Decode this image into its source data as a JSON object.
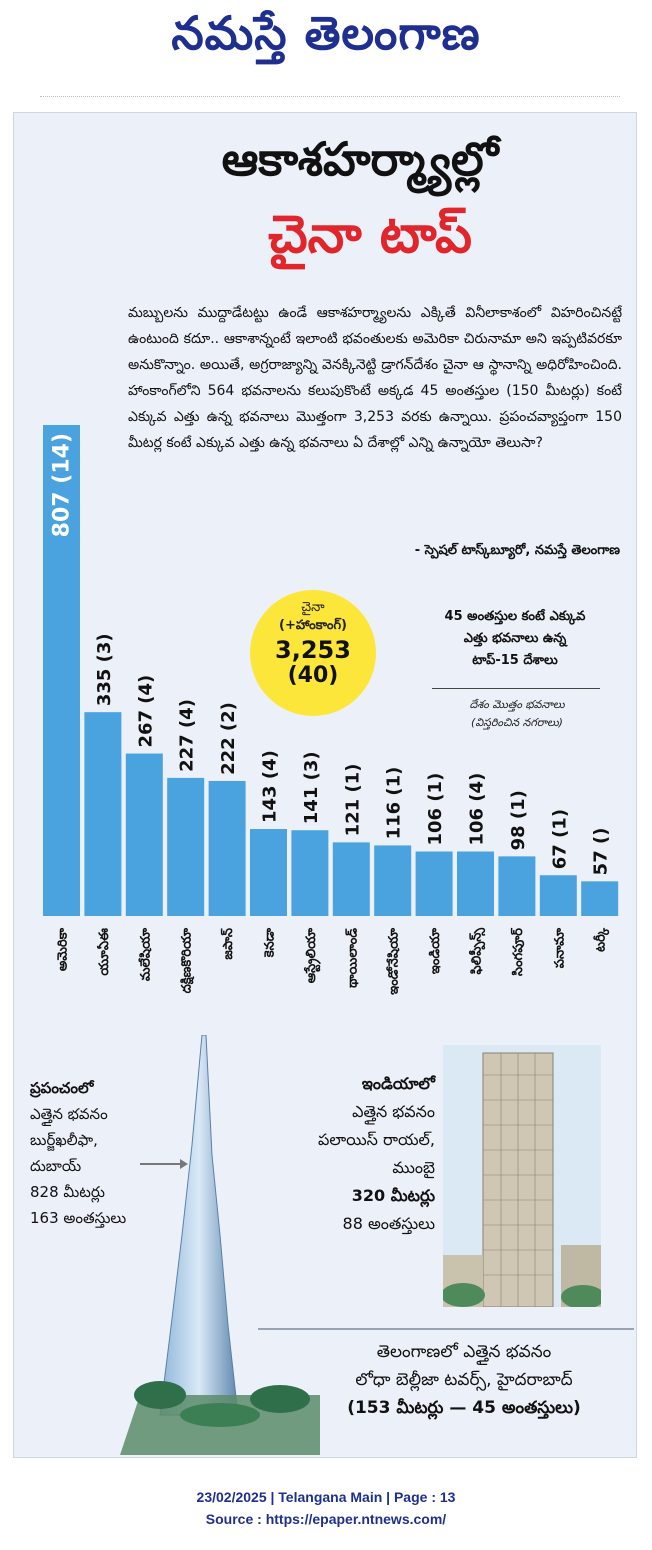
{
  "masthead": "నమస్తే తెలంగాణ",
  "headline_line1": "ఆకాశహర్మ్యాల్లో",
  "headline_line2": "చైనా టాప్",
  "intro_text": "మబ్బులను ముద్దాడేటట్టు ఉండే ఆకాశహర్మ్యాలను ఎక్కితే వినీలాకాశంలో విహరించినట్టే ఉంటుంది కదూ.. ఆకాశాన్నంటే ఇలాంటి భవంతులకు అమెరికా చిరునామా అని ఇప్పటివరకూ అనుకొన్నాం. అయితే, అగ్రరాజ్యాన్ని వెనక్కినెట్టి డ్రాగన్‌దేశం చైనా ఆ స్థానాన్ని అధిరోహించింది. హాంకాంగ్‌లోని 564 భవనాలను కలుపుకొంటే అక్కడ 45 అంతస్తుల (150 మీటర్లు) కంటే ఎక్కువ ఎత్తు ఉన్న భవనాలు మొత్తంగా 3,253 వరకు ఉన్నాయి. ప్రపంచవ్యాప్తంగా 150 మీటర్ల కంటే ఎక్కువ ఎత్తు ఉన్న భవనాలు ఏ దేశాల్లో ఎన్ని ఉన్నాయో తెలుసా?",
  "byline": "- స్పెషల్ టాస్క్‌బ్యూరో, నమస్తే తెలంగాణ",
  "china_circle": {
    "country": "చైనా",
    "sub": "(+హాంకాంగ్)",
    "total": "3,253",
    "cities": "(40)"
  },
  "legend": {
    "title_lines": [
      "45 అంతస్తుల కంటే ఎక్కువ",
      "ఎత్తు భవనాలు ఉన్న",
      "టాప్-15 దేశాలు"
    ],
    "note_lines": [
      "దేశం మొత్తం భవనాలు",
      "(విస్తరించిన నగరాలు)"
    ]
  },
  "chart_data": {
    "type": "bar",
    "categories": [
      "అమెరికా",
      "యూఏఈ",
      "మలేషియా",
      "దక్షిణకొరియా",
      "జపాన్",
      "కెనడా",
      "ఆస్ట్రేలియా",
      "థాయిలాండ్",
      "ఇండోనేషియా",
      "ఇండియా",
      "ఫిలిప్పీన్స్",
      "సింగపూర్",
      "పనామా",
      "టర్కీ"
    ],
    "values": [
      807,
      335,
      267,
      227,
      222,
      143,
      141,
      121,
      116,
      106,
      106,
      98,
      67,
      57
    ],
    "labels": [
      "807 (14)",
      "335 (3)",
      "267 (4)",
      "227 (4)",
      "222 (2)",
      "143 (4)",
      "141 (3)",
      "121 (1)",
      "116 (1)",
      "106 (1)",
      "106 (4)",
      "98 (1)",
      "67 (1)",
      "57 ()"
    ],
    "bar_color": "#4aa3df"
  },
  "burj": {
    "heading": "ప్రపంచంలో",
    "line2": "ఎత్తైన భవనం",
    "name": "బుర్జ్‌ఖలీఫా,",
    "city": "దుబాయ్",
    "height": "828 మీటర్లు",
    "floors": "163 అంతస్తులు"
  },
  "india": {
    "heading": "ఇండియాలో",
    "line2": "ఎత్తైన భవనం",
    "name": "పలాయిస్ రాయల్,",
    "city": "ముంబై",
    "height": "320 మీటర్లు",
    "floors": "88 అంతస్తులు"
  },
  "telangana": {
    "line1": "తెలంగాణలో ఎత్తైన భవనం",
    "line2": "లోధా బెల్లీజా టవర్స్, హైదరాబాద్",
    "line3": "(153 మీటర్లు — 45 అంతస్తులు)"
  },
  "footer": {
    "line1": "23/02/2025 | Telangana Main | Page : 13",
    "line2": "Source : https://epaper.ntnews.com/"
  }
}
